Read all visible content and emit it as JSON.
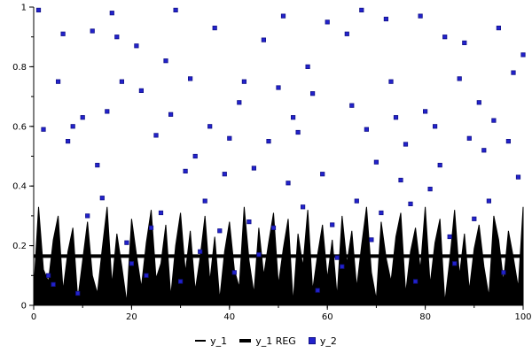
{
  "chart_data": {
    "type": "mixed",
    "title": "",
    "xlabel": "",
    "ylabel": "",
    "xlim": [
      0,
      100
    ],
    "ylim": [
      0,
      1
    ],
    "grid": false,
    "legend_position": "bottom",
    "x_ticks": [
      0,
      20,
      40,
      60,
      80,
      100
    ],
    "x_tick_labels": [
      "0",
      "20",
      "40",
      "60",
      "80",
      "100"
    ],
    "y_ticks": [
      0,
      0.2,
      0.4,
      0.6,
      0.8,
      1
    ],
    "y_tick_labels": [
      "0",
      "0.2",
      "0.4",
      "0.6",
      "0.8",
      "1"
    ],
    "x_minor_step": 10,
    "y_minor_step": 0.1,
    "series": [
      {
        "name": "y_1",
        "type": "area",
        "color": "#000000",
        "x_start": 0,
        "x_step": 1,
        "values": [
          0.05,
          0.33,
          0.12,
          0.08,
          0.22,
          0.3,
          0.05,
          0.18,
          0.26,
          0.02,
          0.15,
          0.28,
          0.1,
          0.04,
          0.19,
          0.33,
          0.07,
          0.24,
          0.13,
          0.01,
          0.29,
          0.17,
          0.06,
          0.21,
          0.32,
          0.09,
          0.14,
          0.27,
          0.03,
          0.2,
          0.31,
          0.11,
          0.25,
          0.05,
          0.16,
          0.3,
          0.08,
          0.23,
          0.02,
          0.18,
          0.28,
          0.12,
          0.06,
          0.33,
          0.15,
          0.04,
          0.26,
          0.1,
          0.21,
          0.31,
          0.07,
          0.19,
          0.29,
          0.01,
          0.24,
          0.13,
          0.32,
          0.05,
          0.17,
          0.27,
          0.09,
          0.22,
          0.03,
          0.3,
          0.14,
          0.25,
          0.06,
          0.2,
          0.33,
          0.11,
          0.02,
          0.28,
          0.16,
          0.08,
          0.23,
          0.31,
          0.04,
          0.18,
          0.26,
          0.12,
          0.33,
          0.07,
          0.21,
          0.29,
          0.01,
          0.15,
          0.32,
          0.1,
          0.24,
          0.05,
          0.19,
          0.27,
          0.13,
          0.03,
          0.3,
          0.22,
          0.08,
          0.25,
          0.16,
          0.06,
          0.33
        ]
      },
      {
        "name": "y_1 REG",
        "type": "line",
        "color": "#000000",
        "width": 4,
        "y": 0.165,
        "x_range": [
          0,
          100
        ]
      },
      {
        "name": "y_2",
        "type": "scatter",
        "marker": "square",
        "color": "#2222cc",
        "border": "#111188",
        "points": [
          [
            1,
            0.99
          ],
          [
            2,
            0.59
          ],
          [
            3,
            0.1
          ],
          [
            4,
            0.07
          ],
          [
            5,
            0.75
          ],
          [
            6,
            0.91
          ],
          [
            7,
            0.55
          ],
          [
            8,
            0.6
          ],
          [
            9,
            0.04
          ],
          [
            10,
            0.63
          ],
          [
            11,
            0.3
          ],
          [
            12,
            0.92
          ],
          [
            13,
            0.47
          ],
          [
            14,
            0.36
          ],
          [
            15,
            0.65
          ],
          [
            16,
            0.98
          ],
          [
            17,
            0.9
          ],
          [
            18,
            0.75
          ],
          [
            19,
            0.21
          ],
          [
            20,
            0.14
          ],
          [
            21,
            0.87
          ],
          [
            22,
            0.72
          ],
          [
            23,
            0.1
          ],
          [
            24,
            0.26
          ],
          [
            25,
            0.57
          ],
          [
            26,
            0.31
          ],
          [
            27,
            0.82
          ],
          [
            28,
            0.64
          ],
          [
            29,
            0.99
          ],
          [
            30,
            0.08
          ],
          [
            31,
            0.45
          ],
          [
            32,
            0.76
          ],
          [
            33,
            0.5
          ],
          [
            34,
            0.18
          ],
          [
            35,
            0.35
          ],
          [
            36,
            0.6
          ],
          [
            37,
            0.93
          ],
          [
            38,
            0.25
          ],
          [
            39,
            0.44
          ],
          [
            40,
            0.56
          ],
          [
            41,
            0.11
          ],
          [
            42,
            0.68
          ],
          [
            43,
            0.75
          ],
          [
            44,
            0.28
          ],
          [
            45,
            0.46
          ],
          [
            46,
            0.17
          ],
          [
            47,
            0.89
          ],
          [
            48,
            0.55
          ],
          [
            49,
            0.26
          ],
          [
            50,
            0.73
          ],
          [
            51,
            0.97
          ],
          [
            52,
            0.41
          ],
          [
            53,
            0.63
          ],
          [
            54,
            0.58
          ],
          [
            55,
            0.33
          ],
          [
            56,
            0.8
          ],
          [
            57,
            0.71
          ],
          [
            58,
            0.05
          ],
          [
            59,
            0.44
          ],
          [
            60,
            0.95
          ],
          [
            61,
            0.27
          ],
          [
            62,
            0.16
          ],
          [
            63,
            0.13
          ],
          [
            64,
            0.91
          ],
          [
            65,
            0.67
          ],
          [
            66,
            0.35
          ],
          [
            67,
            0.99
          ],
          [
            68,
            0.59
          ],
          [
            69,
            0.22
          ],
          [
            70,
            0.48
          ],
          [
            71,
            0.31
          ],
          [
            72,
            0.96
          ],
          [
            73,
            0.75
          ],
          [
            74,
            0.63
          ],
          [
            75,
            0.42
          ],
          [
            76,
            0.54
          ],
          [
            77,
            0.34
          ],
          [
            78,
            0.08
          ],
          [
            79,
            0.97
          ],
          [
            80,
            0.65
          ],
          [
            81,
            0.39
          ],
          [
            82,
            0.6
          ],
          [
            83,
            0.47
          ],
          [
            84,
            0.9
          ],
          [
            85,
            0.23
          ],
          [
            86,
            0.14
          ],
          [
            87,
            0.76
          ],
          [
            88,
            0.88
          ],
          [
            89,
            0.56
          ],
          [
            90,
            0.29
          ],
          [
            91,
            0.68
          ],
          [
            92,
            0.52
          ],
          [
            93,
            0.35
          ],
          [
            94,
            0.62
          ],
          [
            95,
            0.93
          ],
          [
            96,
            0.11
          ],
          [
            97,
            0.55
          ],
          [
            98,
            0.78
          ],
          [
            99,
            0.43
          ],
          [
            100,
            0.84
          ]
        ]
      }
    ],
    "legend": [
      {
        "label": "y_1",
        "swatch": "thin-line"
      },
      {
        "label": "y_1 REG",
        "swatch": "thick-line"
      },
      {
        "label": "y_2",
        "swatch": "square"
      }
    ]
  }
}
